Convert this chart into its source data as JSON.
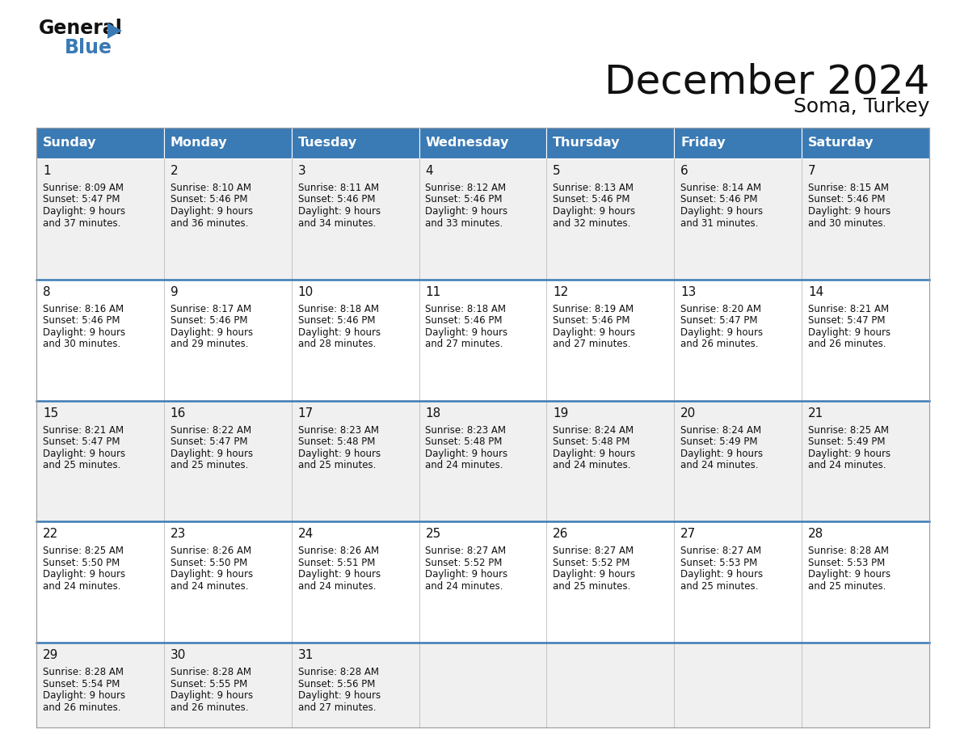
{
  "title": "December 2024",
  "subtitle": "Soma, Turkey",
  "header_color": "#3a7ab5",
  "header_text_color": "#ffffff",
  "bg_color": "#ffffff",
  "cell_bg_even": "#f0f0f0",
  "cell_bg_odd": "#ffffff",
  "separator_color": "#3a7ab5",
  "grid_line_color": "#cccccc",
  "days_of_week": [
    "Sunday",
    "Monday",
    "Tuesday",
    "Wednesday",
    "Thursday",
    "Friday",
    "Saturday"
  ],
  "weeks": [
    [
      {
        "day": 1,
        "sunrise": "8:09 AM",
        "sunset": "5:47 PM",
        "daylight": "9 hours and 37 minutes."
      },
      {
        "day": 2,
        "sunrise": "8:10 AM",
        "sunset": "5:46 PM",
        "daylight": "9 hours and 36 minutes."
      },
      {
        "day": 3,
        "sunrise": "8:11 AM",
        "sunset": "5:46 PM",
        "daylight": "9 hours and 34 minutes."
      },
      {
        "day": 4,
        "sunrise": "8:12 AM",
        "sunset": "5:46 PM",
        "daylight": "9 hours and 33 minutes."
      },
      {
        "day": 5,
        "sunrise": "8:13 AM",
        "sunset": "5:46 PM",
        "daylight": "9 hours and 32 minutes."
      },
      {
        "day": 6,
        "sunrise": "8:14 AM",
        "sunset": "5:46 PM",
        "daylight": "9 hours and 31 minutes."
      },
      {
        "day": 7,
        "sunrise": "8:15 AM",
        "sunset": "5:46 PM",
        "daylight": "9 hours and 30 minutes."
      }
    ],
    [
      {
        "day": 8,
        "sunrise": "8:16 AM",
        "sunset": "5:46 PM",
        "daylight": "9 hours and 30 minutes."
      },
      {
        "day": 9,
        "sunrise": "8:17 AM",
        "sunset": "5:46 PM",
        "daylight": "9 hours and 29 minutes."
      },
      {
        "day": 10,
        "sunrise": "8:18 AM",
        "sunset": "5:46 PM",
        "daylight": "9 hours and 28 minutes."
      },
      {
        "day": 11,
        "sunrise": "8:18 AM",
        "sunset": "5:46 PM",
        "daylight": "9 hours and 27 minutes."
      },
      {
        "day": 12,
        "sunrise": "8:19 AM",
        "sunset": "5:46 PM",
        "daylight": "9 hours and 27 minutes."
      },
      {
        "day": 13,
        "sunrise": "8:20 AM",
        "sunset": "5:47 PM",
        "daylight": "9 hours and 26 minutes."
      },
      {
        "day": 14,
        "sunrise": "8:21 AM",
        "sunset": "5:47 PM",
        "daylight": "9 hours and 26 minutes."
      }
    ],
    [
      {
        "day": 15,
        "sunrise": "8:21 AM",
        "sunset": "5:47 PM",
        "daylight": "9 hours and 25 minutes."
      },
      {
        "day": 16,
        "sunrise": "8:22 AM",
        "sunset": "5:47 PM",
        "daylight": "9 hours and 25 minutes."
      },
      {
        "day": 17,
        "sunrise": "8:23 AM",
        "sunset": "5:48 PM",
        "daylight": "9 hours and 25 minutes."
      },
      {
        "day": 18,
        "sunrise": "8:23 AM",
        "sunset": "5:48 PM",
        "daylight": "9 hours and 24 minutes."
      },
      {
        "day": 19,
        "sunrise": "8:24 AM",
        "sunset": "5:48 PM",
        "daylight": "9 hours and 24 minutes."
      },
      {
        "day": 20,
        "sunrise": "8:24 AM",
        "sunset": "5:49 PM",
        "daylight": "9 hours and 24 minutes."
      },
      {
        "day": 21,
        "sunrise": "8:25 AM",
        "sunset": "5:49 PM",
        "daylight": "9 hours and 24 minutes."
      }
    ],
    [
      {
        "day": 22,
        "sunrise": "8:25 AM",
        "sunset": "5:50 PM",
        "daylight": "9 hours and 24 minutes."
      },
      {
        "day": 23,
        "sunrise": "8:26 AM",
        "sunset": "5:50 PM",
        "daylight": "9 hours and 24 minutes."
      },
      {
        "day": 24,
        "sunrise": "8:26 AM",
        "sunset": "5:51 PM",
        "daylight": "9 hours and 24 minutes."
      },
      {
        "day": 25,
        "sunrise": "8:27 AM",
        "sunset": "5:52 PM",
        "daylight": "9 hours and 24 minutes."
      },
      {
        "day": 26,
        "sunrise": "8:27 AM",
        "sunset": "5:52 PM",
        "daylight": "9 hours and 25 minutes."
      },
      {
        "day": 27,
        "sunrise": "8:27 AM",
        "sunset": "5:53 PM",
        "daylight": "9 hours and 25 minutes."
      },
      {
        "day": 28,
        "sunrise": "8:28 AM",
        "sunset": "5:53 PM",
        "daylight": "9 hours and 25 minutes."
      }
    ],
    [
      {
        "day": 29,
        "sunrise": "8:28 AM",
        "sunset": "5:54 PM",
        "daylight": "9 hours and 26 minutes."
      },
      {
        "day": 30,
        "sunrise": "8:28 AM",
        "sunset": "5:55 PM",
        "daylight": "9 hours and 26 minutes."
      },
      {
        "day": 31,
        "sunrise": "8:28 AM",
        "sunset": "5:56 PM",
        "daylight": "9 hours and 27 minutes."
      },
      null,
      null,
      null,
      null
    ]
  ]
}
